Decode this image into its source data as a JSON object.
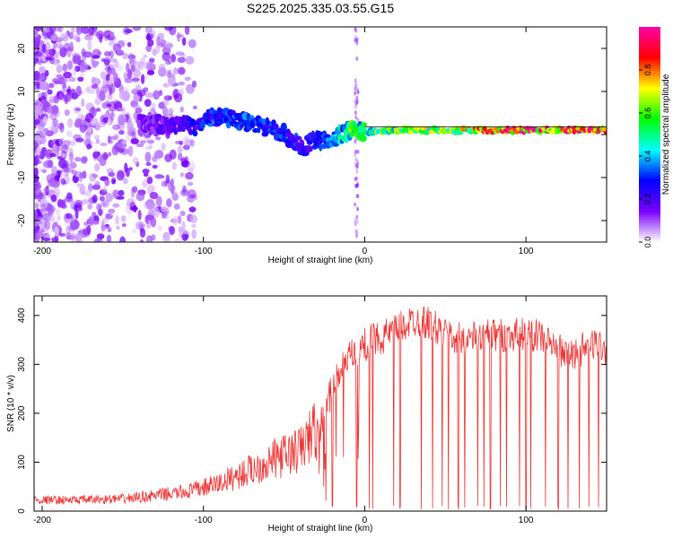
{
  "title": "S225.2025.335.03.55.G15",
  "chart_data": [
    {
      "type": "heatmap",
      "xlabel": "Height of straight line (km)",
      "ylabel": "Frequency (Hz)",
      "xlim": [
        -205,
        150
      ],
      "ylim": [
        -25,
        25
      ],
      "xticks": [
        -200,
        -100,
        0,
        100
      ],
      "xtick_labels": [
        "-200",
        "-100",
        "0",
        "100"
      ],
      "yticks": [
        -20,
        -10,
        0,
        10,
        20
      ],
      "ytick_labels": [
        "-20",
        "-10",
        "0",
        "10",
        "20"
      ],
      "grid": false,
      "colorbar": {
        "label": "Normalized spectral amplitude",
        "range": [
          0,
          1
        ],
        "ticks": [
          0.0,
          0.2,
          0.4,
          0.6,
          0.8
        ],
        "tick_labels": [
          "0.0",
          "0.2",
          "0.4",
          "0.6",
          "0.8"
        ],
        "colors": [
          "#ffffff",
          "#7a00ff",
          "#0000ff",
          "#00ffff",
          "#00ff00",
          "#ffff00",
          "#ff0000",
          "#ff00aa"
        ]
      },
      "ridge": {
        "x": [
          -135,
          -120,
          -105,
          -95,
          -85,
          -75,
          -65,
          -55,
          -45,
          -38,
          -30,
          -22,
          -15,
          -8,
          0,
          10,
          30,
          60,
          90,
          120,
          150
        ],
        "y": [
          3,
          2,
          2,
          4,
          4,
          3,
          2,
          1,
          -1,
          -3,
          -1,
          -2,
          0,
          1,
          0.5,
          1,
          1,
          1,
          1,
          1,
          1
        ],
        "amplitude": [
          0.15,
          0.2,
          0.25,
          0.3,
          0.35,
          0.35,
          0.3,
          0.3,
          0.3,
          0.25,
          0.3,
          0.35,
          0.45,
          0.55,
          0.5,
          0.6,
          0.6,
          0.7,
          0.9,
          0.9,
          0.8
        ]
      }
    },
    {
      "type": "line",
      "xlabel": "Height of straight line (km)",
      "ylabel": "SNR (10 * v/v)",
      "xlim": [
        -205,
        150
      ],
      "ylim": [
        0,
        440
      ],
      "xticks": [
        -200,
        -100,
        0,
        100
      ],
      "xtick_labels": [
        "-200",
        "-100",
        "0",
        "100"
      ],
      "yticks": [
        0,
        100,
        200,
        300,
        400
      ],
      "ytick_labels": [
        "0",
        "100",
        "200",
        "300",
        "400"
      ],
      "grid": false,
      "color": "#ee3333",
      "envelope": {
        "x": [
          -205,
          -180,
          -150,
          -130,
          -110,
          -90,
          -70,
          -55,
          -40,
          -30,
          -25,
          -20,
          -15,
          -10,
          -5,
          0,
          5,
          10,
          20,
          30,
          40,
          50,
          60,
          70,
          80,
          90,
          100,
          110,
          120,
          125,
          135,
          145,
          150
        ],
        "y": [
          20,
          20,
          22,
          28,
          35,
          50,
          75,
          95,
          110,
          150,
          200,
          250,
          290,
          310,
          325,
          340,
          350,
          355,
          370,
          390,
          385,
          360,
          350,
          355,
          360,
          360,
          365,
          355,
          330,
          315,
          330,
          345,
          330
        ]
      },
      "dropouts": [
        -20,
        -5,
        3,
        5,
        18,
        22,
        35,
        42,
        48,
        52,
        58,
        62,
        70,
        74,
        78,
        84,
        88,
        96,
        100,
        103,
        112,
        120,
        126,
        133,
        139,
        145
      ]
    }
  ]
}
